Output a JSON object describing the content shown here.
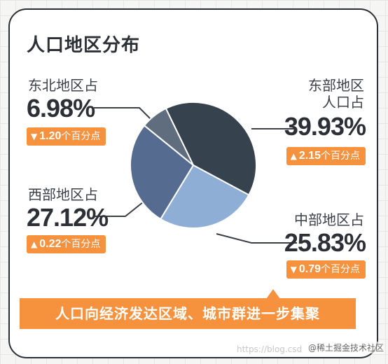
{
  "title": "人口地区分布",
  "banner": "人口向经济发达区域、城市群进一步集聚",
  "watermark": {
    "url": "https://blog.csd",
    "site": "@稀土掘金技术社区"
  },
  "colors": {
    "east": "#37424f",
    "central": "#8eaed6",
    "west": "#556b8f",
    "northeast": "#5f6d7f",
    "accent": "#f6913e",
    "text": "#2c2f36"
  },
  "chart_data": {
    "type": "pie",
    "title": "人口地区分布",
    "slices": [
      {
        "label": "东部地区人口占",
        "value": 39.93,
        "value_text": "39.93%",
        "change": "2.15",
        "change_unit": "个百分点",
        "direction": "up"
      },
      {
        "label": "中部地区占",
        "value": 25.83,
        "value_text": "25.83%",
        "change": "0.79",
        "change_unit": "个百分点",
        "direction": "down"
      },
      {
        "label": "西部地区占",
        "value": 27.12,
        "value_text": "27.12%",
        "change": "0.22",
        "change_unit": "个百分点",
        "direction": "up"
      },
      {
        "label": "东北地区占",
        "value": 6.98,
        "value_text": "6.98%",
        "change": "1.20",
        "change_unit": "个百分点",
        "direction": "down"
      }
    ]
  },
  "labels": {
    "east_line1": "东部地区",
    "east_line2": "人口占",
    "central": "中部地区占",
    "west": "西部地区占",
    "northeast": "东北地区占"
  }
}
